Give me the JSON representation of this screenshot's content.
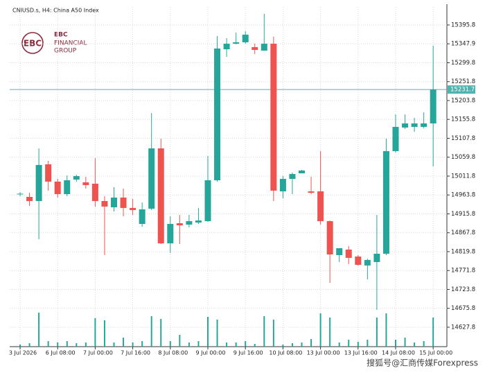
{
  "chart_data": {
    "type": "candlestick",
    "title": "CNIUSD.s, H4:  China A50 Index",
    "logo": {
      "mark": "EBC",
      "line1": "EBC",
      "line2": "FINANCIAL",
      "line3": "GROUP"
    },
    "watermark": "搜狐号@汇商传媒Forexpress",
    "up_color": "#26a69a",
    "down_color": "#ef5350",
    "categories": [
      "3 Jul 2026",
      null,
      null,
      null,
      "6 Jul 08:00",
      null,
      null,
      null,
      "7 Jul 00:00",
      null,
      null,
      null,
      "7 Jul 16:00",
      null,
      null,
      null,
      "8 Jul 08:00",
      null,
      null,
      null,
      "9 Jul 00:00",
      null,
      null,
      null,
      "9 Jul 16:00",
      null,
      null,
      null,
      "10 Jul 08:00",
      null,
      null,
      null,
      "13 Jul 00:00",
      null,
      null,
      null,
      "13 Jul 16:00",
      null,
      null,
      null,
      "14 Jul 08:00",
      null,
      null,
      null,
      "15 Jul 00:00"
    ],
    "open": [
      14966.0,
      14958.9,
      14948.4,
      15041.7,
      14997.7,
      14966.0,
      15002.9,
      14995.9,
      14992.4,
      14948.4,
      14932.5,
      14957.2,
      14930.8,
      14890.2,
      14929.0,
      15082.2,
      14840.9,
      14892.0,
      14888.5,
      14893.8,
      14897.3,
      15001.2,
      15334.1,
      15348.2,
      15351.8,
      15339.4,
      15330.6,
      15348.2,
      14973.0,
      15004.7,
      15018.8,
      14973.0,
      14973.0,
      14897.3,
      14811.0,
      14825.1,
      14807.5,
      14784.6,
      14793.4,
      14814.5,
      15075.2,
      15135.1,
      15136.8,
      15136.8,
      15145.6
    ],
    "high": [
      14971.3,
      14969.5,
      15082.2,
      15050.5,
      15004.7,
      15013.5,
      15015.3,
      15010.0,
      15057.6,
      14960.7,
      14983.6,
      14980.1,
      14953.7,
      14944.9,
      15172.1,
      15106.9,
      14909.6,
      14913.1,
      14913.1,
      14930.8,
      15062.9,
      15367.6,
      15362.3,
      15376.4,
      15379.9,
      15348.2,
      15424.0,
      15365.8,
      15011.8,
      15020.6,
      15027.6,
      15010.0,
      15075.2,
      14899.0,
      14828.6,
      14833.9,
      14811.0,
      14802.2,
      14913.1,
      15106.9,
      15168.5,
      15168.5,
      15159.7,
      15173.8,
      15343.0
    ],
    "low": [
      14960.7,
      14936.0,
      14851.5,
      14974.8,
      14957.2,
      14960.7,
      14997.7,
      14980.1,
      14934.3,
      14811.0,
      14921.9,
      14909.6,
      14913.1,
      14883.2,
      14925.5,
      14839.2,
      14816.3,
      14839.2,
      14881.4,
      14890.2,
      14895.5,
      14997.7,
      15314.8,
      15346.5,
      15348.2,
      15321.8,
      15330.6,
      14948.4,
      14955.4,
      14966.0,
      15018.8,
      14966.0,
      14888.5,
      14740.5,
      14793.4,
      14788.1,
      14784.6,
      14749.3,
      14671.8,
      14811.0,
      15071.7,
      15131.6,
      15124.5,
      15133.3,
      15036.4
    ],
    "close": [
      14967.0,
      14948.4,
      15040.0,
      14997.7,
      14966.0,
      15001.2,
      15011.8,
      14988.9,
      14948.4,
      14934.3,
      14957.2,
      14930.8,
      14925.5,
      14927.2,
      15082.2,
      14840.9,
      14890.2,
      14886.7,
      14897.3,
      14899.0,
      15001.2,
      15335.9,
      15348.2,
      15351.8,
      15371.1,
      15332.4,
      15348.2,
      14974.8,
      15004.7,
      15017.1,
      15025.9,
      14969.5,
      14897.3,
      14812.7,
      14828.6,
      14804.0,
      14786.3,
      14798.6,
      14814.5,
      15075.2,
      15136.8,
      15145.6,
      15145.6,
      15145.6,
      15231.7
    ],
    "volume": [
      3,
      5,
      49,
      8,
      6,
      8,
      5,
      6,
      41,
      38,
      6,
      13,
      6,
      8,
      44,
      40,
      8,
      17,
      6,
      8,
      43,
      39,
      6,
      6,
      8,
      4,
      44,
      39,
      3,
      5,
      6,
      11,
      48,
      42,
      6,
      10,
      7,
      10,
      42,
      48,
      10,
      13,
      6,
      8,
      42
    ],
    "volume_lim": [
      0,
      490
    ],
    "ylim": [
      14578.4,
      15441.6
    ],
    "yticks": [
      15395.8,
      15347.9,
      15299.8,
      15251.8,
      15203.8,
      15155.8,
      15107.8,
      15059.8,
      15011.8,
      14963.8,
      14915.8,
      14867.8,
      14819.8,
      14771.8,
      14723.8,
      14675.8,
      14627.8
    ],
    "current_price": 15231.7,
    "current_price_color": "#4fb3b0",
    "grid": true
  }
}
